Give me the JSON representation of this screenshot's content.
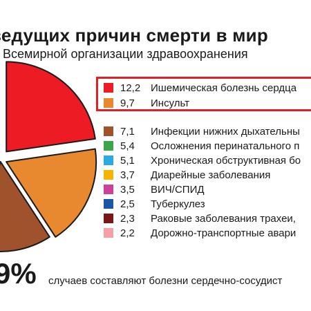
{
  "title": "ведущих причин смерти в мир",
  "subtitle": "Всемирной организации здравоохранения",
  "big_number": "9%",
  "footnote": "случаев составляют болезни сердечно-сосудист",
  "highlight_color": "#e01f26",
  "chart_data": {
    "type": "pie",
    "labels": [
      "Ишемическая болезнь сердца",
      "Инсульт",
      "Инфекции нижних дыхательны",
      "Осложнения перинатального п",
      "Хроническая обструктивная бо",
      "Диарейные заболевания",
      "ВИЧ/СПИД",
      "Туберкулез",
      "Раковые заболевания трахеи,",
      "Дорожно-транспортные авари"
    ],
    "values": [
      12.2,
      9.7,
      7.1,
      5.4,
      5.1,
      3.7,
      3.5,
      2.5,
      2.3,
      2.2
    ],
    "value_labels": [
      "12,2",
      "9,7",
      "7,1",
      "5,4",
      "5,1",
      "3,7",
      "3,5",
      "2,5",
      "2,3",
      "2,2"
    ],
    "colors": [
      "#ed1c24",
      "#e8892f",
      "#a0522d",
      "#3aa54a",
      "#29abe2",
      "#f5b400",
      "#c9439a",
      "#1a55a6",
      "#7a1616",
      "#f4a0a4"
    ],
    "highlighted": [
      0,
      1
    ]
  }
}
